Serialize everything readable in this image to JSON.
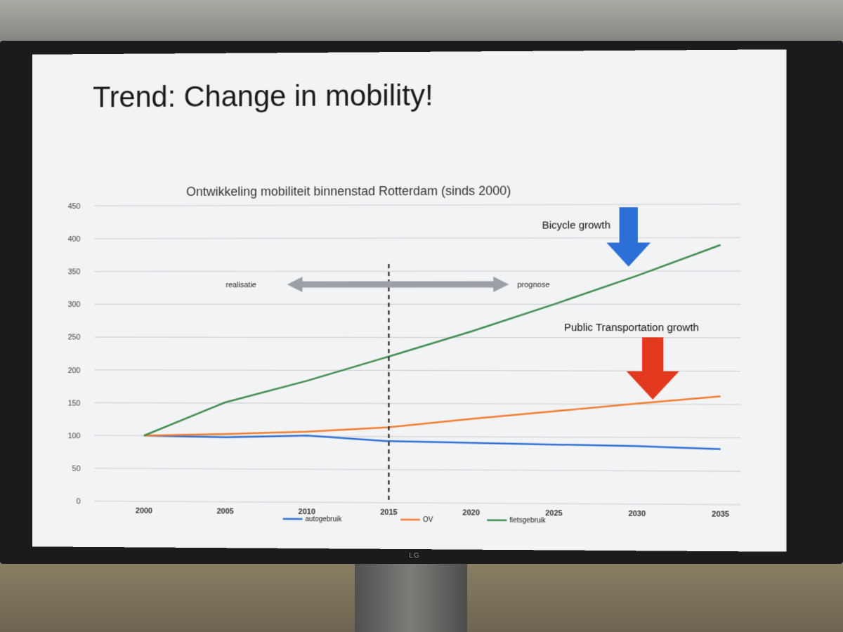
{
  "slide": {
    "title": "Trend: Change in mobility!"
  },
  "screen": {
    "brand": "LG"
  },
  "chart_data": {
    "type": "line",
    "title": "Ontwikkeling mobiliteit binnenstad Rotterdam (sinds 2000)",
    "xlabel": "",
    "ylabel": "",
    "x": [
      2000,
      2005,
      2010,
      2015,
      2020,
      2025,
      2030,
      2035
    ],
    "x_ticks": [
      "2000",
      "2005",
      "2010",
      "2015",
      "2020",
      "2025",
      "2030",
      "2035"
    ],
    "ylim": [
      0,
      450
    ],
    "y_ticks": [
      "0",
      "50",
      "100",
      "150",
      "200",
      "250",
      "300",
      "350",
      "400",
      "450"
    ],
    "grid": true,
    "legend_position": "bottom",
    "series": [
      {
        "name": "autogebruik",
        "color": "#2e6fd0",
        "values": [
          100,
          98,
          101,
          93,
          91,
          89,
          87,
          83
        ]
      },
      {
        "name": "OV",
        "color": "#ed7d31",
        "values": [
          100,
          103,
          107,
          114,
          127,
          139,
          151,
          162
        ]
      },
      {
        "name": "fietsgebruik",
        "color": "#3f8b4c",
        "values": [
          100,
          151,
          184,
          221,
          259,
          300,
          343,
          389
        ]
      }
    ],
    "divider_year": 2015,
    "annotations": {
      "realisatie": "realisatie",
      "prognose": "prognose",
      "bicycle_growth": "Bicycle growth",
      "public_transport_growth": "Public Transportation growth"
    },
    "colors": {
      "bicycle_arrow": "#2c6fd6",
      "pt_arrow": "#e2381e",
      "range_arrow": "#9aa0a6"
    }
  }
}
